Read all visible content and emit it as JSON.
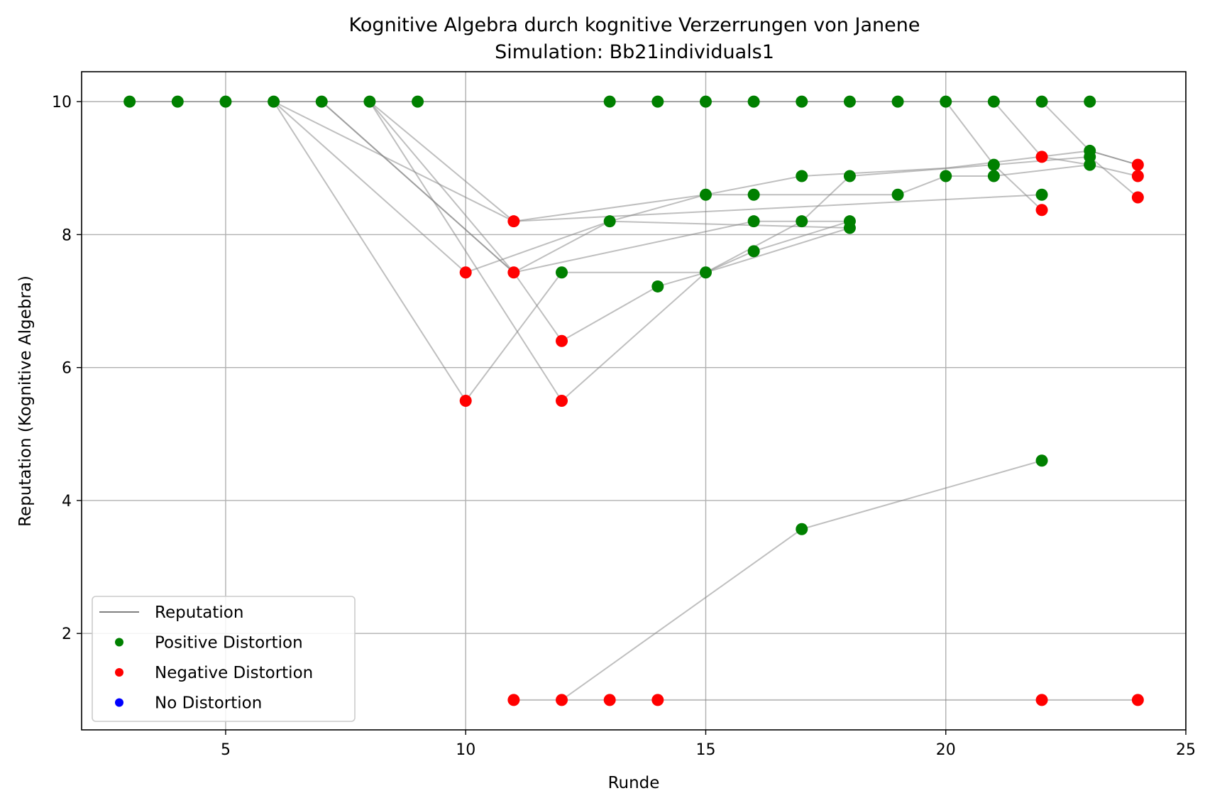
{
  "chart_data": {
    "type": "scatter",
    "title": "Kognitive Algebra durch kognitive Verzerrungen von Janene",
    "subtitle": "Simulation: Bb21individuals1",
    "xlabel": "Runde",
    "ylabel": "Reputation (Kognitive Algebra)",
    "xlim": [
      2,
      25
    ],
    "ylim": [
      0.55,
      10.45
    ],
    "xticks": [
      5,
      10,
      15,
      20,
      25
    ],
    "yticks": [
      2,
      4,
      6,
      8,
      10
    ],
    "grid": true,
    "legend_position": "lower-left",
    "colors": {
      "line": "#808080",
      "positive": "#008000",
      "negative": "#ff0000",
      "none": "#0000ff",
      "grid": "#b0b0b0"
    },
    "legend": [
      {
        "label": "Reputation",
        "kind": "line",
        "color": "#808080"
      },
      {
        "label": "Positive Distortion",
        "kind": "dot",
        "color": "#008000"
      },
      {
        "label": "Negative Distortion",
        "kind": "dot",
        "color": "#ff0000"
      },
      {
        "label": "No Distortion",
        "kind": "dot",
        "color": "#0000ff"
      }
    ],
    "lines": [
      [
        [
          3,
          10
        ],
        [
          4,
          10
        ],
        [
          5,
          10
        ],
        [
          6,
          10
        ],
        [
          7,
          10
        ],
        [
          8,
          10
        ],
        [
          9,
          10
        ],
        [
          13,
          10
        ],
        [
          14,
          10
        ],
        [
          15,
          10
        ],
        [
          16,
          10
        ],
        [
          17,
          10
        ],
        [
          18,
          10
        ],
        [
          19,
          10
        ],
        [
          20,
          10
        ],
        [
          21,
          10
        ],
        [
          22,
          10
        ],
        [
          23,
          10
        ]
      ],
      [
        [
          6,
          10
        ],
        [
          11,
          8.2
        ],
        [
          15,
          8.6
        ],
        [
          17,
          8.88
        ],
        [
          20,
          9.0
        ],
        [
          23,
          9.26
        ],
        [
          24,
          9.05
        ]
      ],
      [
        [
          6,
          10
        ],
        [
          10,
          7.43
        ],
        [
          13,
          8.2
        ],
        [
          15,
          8.6
        ],
        [
          16,
          8.6
        ],
        [
          19,
          8.6
        ],
        [
          20,
          8.88
        ],
        [
          21,
          8.88
        ],
        [
          23,
          9.05
        ]
      ],
      [
        [
          6,
          10
        ],
        [
          10,
          5.5
        ],
        [
          12,
          7.43
        ],
        [
          15,
          7.43
        ],
        [
          16,
          7.75
        ],
        [
          18,
          8.2
        ]
      ],
      [
        [
          7,
          10
        ],
        [
          11,
          7.43
        ],
        [
          13,
          8.2
        ],
        [
          18,
          8.1
        ]
      ],
      [
        [
          7,
          10
        ],
        [
          11,
          7.43
        ],
        [
          16,
          8.2
        ],
        [
          17,
          8.2
        ],
        [
          18,
          8.88
        ],
        [
          21,
          9.05
        ],
        [
          23,
          9.17
        ],
        [
          24,
          8.56
        ]
      ],
      [
        [
          8,
          10
        ],
        [
          11,
          7.43
        ],
        [
          12,
          6.4
        ],
        [
          14,
          7.22
        ],
        [
          15,
          7.43
        ],
        [
          17,
          8.2
        ],
        [
          18,
          8.2
        ]
      ],
      [
        [
          8,
          10
        ],
        [
          12,
          5.5
        ],
        [
          15,
          7.43
        ],
        [
          18,
          8.1
        ]
      ],
      [
        [
          8,
          10
        ],
        [
          11,
          8.2
        ],
        [
          22,
          8.6
        ]
      ],
      [
        [
          20,
          10
        ],
        [
          21,
          9.05
        ],
        [
          22,
          8.37
        ]
      ],
      [
        [
          21,
          10
        ],
        [
          22,
          9.17
        ],
        [
          23,
          9.05
        ],
        [
          24,
          8.88
        ]
      ],
      [
        [
          22,
          10
        ],
        [
          23,
          9.26
        ],
        [
          24,
          9.05
        ]
      ],
      [
        [
          11,
          1
        ],
        [
          12,
          1
        ],
        [
          13,
          1
        ],
        [
          14,
          1
        ],
        [
          22,
          1
        ],
        [
          24,
          1
        ]
      ],
      [
        [
          12,
          1
        ],
        [
          17,
          3.57
        ],
        [
          22,
          4.6
        ]
      ]
    ],
    "points_positive": [
      [
        3,
        10
      ],
      [
        4,
        10
      ],
      [
        5,
        10
      ],
      [
        6,
        10
      ],
      [
        7,
        10
      ],
      [
        8,
        10
      ],
      [
        9,
        10
      ],
      [
        13,
        10
      ],
      [
        14,
        10
      ],
      [
        15,
        10
      ],
      [
        16,
        10
      ],
      [
        17,
        10
      ],
      [
        18,
        10
      ],
      [
        19,
        10
      ],
      [
        20,
        10
      ],
      [
        21,
        10
      ],
      [
        22,
        10
      ],
      [
        23,
        10
      ],
      [
        23,
        9.26
      ],
      [
        23,
        9.17
      ],
      [
        23,
        9.05
      ],
      [
        21,
        9.05
      ],
      [
        21,
        8.88
      ],
      [
        20,
        8.88
      ],
      [
        18,
        8.88
      ],
      [
        17,
        8.88
      ],
      [
        16,
        8.6
      ],
      [
        15,
        8.6
      ],
      [
        19,
        8.6
      ],
      [
        22,
        8.6
      ],
      [
        13,
        8.2
      ],
      [
        16,
        8.2
      ],
      [
        17,
        8.2
      ],
      [
        18,
        8.2
      ],
      [
        18,
        8.1
      ],
      [
        16,
        7.75
      ],
      [
        15,
        7.43
      ],
      [
        12,
        7.43
      ],
      [
        14,
        7.22
      ],
      [
        22,
        4.6
      ],
      [
        17,
        3.57
      ]
    ],
    "points_negative": [
      [
        11,
        8.2
      ],
      [
        10,
        7.43
      ],
      [
        11,
        7.43
      ],
      [
        12,
        6.4
      ],
      [
        10,
        5.5
      ],
      [
        12,
        5.5
      ],
      [
        22,
        9.17
      ],
      [
        22,
        8.37
      ],
      [
        24,
        9.05
      ],
      [
        24,
        8.88
      ],
      [
        24,
        8.56
      ],
      [
        11,
        1
      ],
      [
        12,
        1
      ],
      [
        13,
        1
      ],
      [
        14,
        1
      ],
      [
        22,
        1
      ],
      [
        24,
        1
      ]
    ],
    "points_none": []
  }
}
